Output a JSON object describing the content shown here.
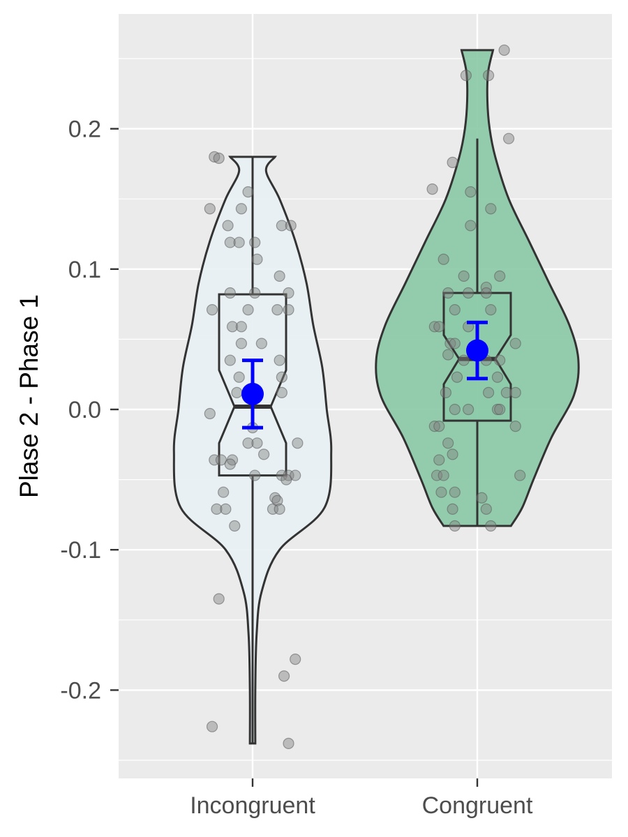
{
  "chart_data": {
    "type": "violin",
    "title": "",
    "xlabel": "",
    "ylabel": "Plase 2 - Phase 1",
    "categories": [
      "Incongruent",
      "Congruent"
    ],
    "ylim": [
      -0.26,
      0.285
    ],
    "y_ticks": [
      {
        "value": -0.2,
        "label": "-0.2"
      },
      {
        "value": -0.1,
        "label": "-0.1"
      },
      {
        "value": 0.0,
        "label": "0.0"
      },
      {
        "value": 0.1,
        "label": "0.1"
      },
      {
        "value": 0.2,
        "label": "0.2"
      }
    ],
    "grid": true,
    "legend": "none",
    "colors": {
      "panel_background": "#ebebeb",
      "grid": "#ffffff",
      "outline": "#333333",
      "points": "#808080",
      "mean": "#0000ff"
    },
    "series": [
      {
        "category": "Incongruent",
        "fill": "#e8f1f4",
        "violin_range": [
          -0.238,
          0.18
        ],
        "violin_density": [
          [
            -0.238,
            0.012
          ],
          [
            -0.2,
            0.012
          ],
          [
            -0.16,
            0.018
          ],
          [
            -0.13,
            0.04
          ],
          [
            -0.1,
            0.12
          ],
          [
            -0.07,
            0.32
          ],
          [
            -0.03,
            0.35
          ],
          [
            0.0,
            0.33
          ],
          [
            0.03,
            0.31
          ],
          [
            0.06,
            0.27
          ],
          [
            0.09,
            0.24
          ],
          [
            0.12,
            0.19
          ],
          [
            0.15,
            0.12
          ],
          [
            0.17,
            0.06
          ],
          [
            0.18,
            0.1
          ]
        ],
        "box": {
          "q1": -0.047,
          "median": 0.002,
          "q3": 0.082,
          "notch_low": -0.024,
          "notch_high": 0.028,
          "whisker_low": -0.238,
          "whisker_high": 0.18
        },
        "mean": 0.011,
        "error_bar": [
          -0.013,
          0.035
        ],
        "points": [
          {
            "dx": -0.17,
            "y": 0.18
          },
          {
            "dx": -0.15,
            "y": 0.179
          },
          {
            "dx": -0.19,
            "y": 0.143
          },
          {
            "dx": -0.02,
            "y": 0.155
          },
          {
            "dx": -0.05,
            "y": 0.143
          },
          {
            "dx": -0.11,
            "y": 0.131
          },
          {
            "dx": 0.13,
            "y": 0.131
          },
          {
            "dx": 0.17,
            "y": 0.131
          },
          {
            "dx": -0.1,
            "y": 0.119
          },
          {
            "dx": -0.06,
            "y": 0.119
          },
          {
            "dx": 0.01,
            "y": 0.119
          },
          {
            "dx": 0.02,
            "y": 0.107
          },
          {
            "dx": 0.12,
            "y": 0.095
          },
          {
            "dx": -0.1,
            "y": 0.083
          },
          {
            "dx": 0.01,
            "y": 0.083
          },
          {
            "dx": 0.16,
            "y": 0.083
          },
          {
            "dx": -0.18,
            "y": 0.071
          },
          {
            "dx": -0.02,
            "y": 0.071
          },
          {
            "dx": 0.11,
            "y": 0.071
          },
          {
            "dx": 0.16,
            "y": 0.071
          },
          {
            "dx": -0.09,
            "y": 0.059
          },
          {
            "dx": -0.05,
            "y": 0.059
          },
          {
            "dx": -0.05,
            "y": 0.047
          },
          {
            "dx": 0.04,
            "y": 0.047
          },
          {
            "dx": 0.12,
            "y": 0.035
          },
          {
            "dx": -0.1,
            "y": 0.035
          },
          {
            "dx": -0.06,
            "y": 0.023
          },
          {
            "dx": 0.13,
            "y": 0.023
          },
          {
            "dx": -0.07,
            "y": 0.012
          },
          {
            "dx": 0.13,
            "y": 0.012
          },
          {
            "dx": -0.19,
            "y": -0.003
          },
          {
            "dx": 0.0,
            "y": -0.013
          },
          {
            "dx": -0.02,
            "y": -0.024
          },
          {
            "dx": 0.02,
            "y": -0.024
          },
          {
            "dx": 0.2,
            "y": -0.024
          },
          {
            "dx": 0.05,
            "y": -0.032
          },
          {
            "dx": -0.17,
            "y": -0.036
          },
          {
            "dx": -0.14,
            "y": -0.036
          },
          {
            "dx": -0.09,
            "y": -0.036
          },
          {
            "dx": -0.1,
            "y": -0.039
          },
          {
            "dx": 0.13,
            "y": -0.047
          },
          {
            "dx": 0.16,
            "y": -0.047
          },
          {
            "dx": 0.19,
            "y": -0.047
          },
          {
            "dx": 0.15,
            "y": -0.05
          },
          {
            "dx": 0.01,
            "y": -0.047
          },
          {
            "dx": -0.13,
            "y": -0.059
          },
          {
            "dx": 0.1,
            "y": -0.063
          },
          {
            "dx": 0.11,
            "y": -0.065
          },
          {
            "dx": -0.16,
            "y": -0.071
          },
          {
            "dx": -0.12,
            "y": -0.071
          },
          {
            "dx": 0.09,
            "y": -0.071
          },
          {
            "dx": 0.12,
            "y": -0.071
          },
          {
            "dx": -0.08,
            "y": -0.083
          },
          {
            "dx": -0.15,
            "y": -0.135
          },
          {
            "dx": 0.19,
            "y": -0.178
          },
          {
            "dx": 0.14,
            "y": -0.19
          },
          {
            "dx": -0.18,
            "y": -0.226
          },
          {
            "dx": 0.16,
            "y": -0.238
          }
        ]
      },
      {
        "category": "Congruent",
        "fill": "#88c9a5",
        "violin_range": [
          -0.083,
          0.256
        ],
        "violin_density": [
          [
            -0.083,
            0.15
          ],
          [
            -0.07,
            0.2
          ],
          [
            -0.05,
            0.25
          ],
          [
            -0.02,
            0.33
          ],
          [
            0.01,
            0.43
          ],
          [
            0.035,
            0.45
          ],
          [
            0.06,
            0.41
          ],
          [
            0.09,
            0.32
          ],
          [
            0.12,
            0.23
          ],
          [
            0.15,
            0.14
          ],
          [
            0.18,
            0.08
          ],
          [
            0.2,
            0.055
          ],
          [
            0.22,
            0.045
          ],
          [
            0.24,
            0.048
          ],
          [
            0.256,
            0.07
          ]
        ],
        "box": {
          "q1": -0.008,
          "median": 0.036,
          "q3": 0.083,
          "notch_low": 0.018,
          "notch_high": 0.053,
          "whisker_low": -0.083,
          "whisker_high": 0.193
        },
        "mean": 0.042,
        "error_bar": [
          0.022,
          0.062
        ],
        "points": [
          {
            "dx": 0.12,
            "y": 0.256
          },
          {
            "dx": -0.05,
            "y": 0.238
          },
          {
            "dx": 0.05,
            "y": 0.238
          },
          {
            "dx": 0.14,
            "y": 0.193
          },
          {
            "dx": -0.11,
            "y": 0.176
          },
          {
            "dx": -0.2,
            "y": 0.157
          },
          {
            "dx": -0.03,
            "y": 0.155
          },
          {
            "dx": 0.06,
            "y": 0.143
          },
          {
            "dx": -0.03,
            "y": 0.131
          },
          {
            "dx": -0.15,
            "y": 0.107
          },
          {
            "dx": -0.06,
            "y": 0.095
          },
          {
            "dx": 0.04,
            "y": 0.087
          },
          {
            "dx": 0.1,
            "y": 0.095
          },
          {
            "dx": -0.13,
            "y": 0.083
          },
          {
            "dx": -0.04,
            "y": 0.083
          },
          {
            "dx": 0.04,
            "y": 0.083
          },
          {
            "dx": -0.1,
            "y": 0.071
          },
          {
            "dx": 0.06,
            "y": 0.071
          },
          {
            "dx": -0.19,
            "y": 0.059
          },
          {
            "dx": -0.17,
            "y": 0.059
          },
          {
            "dx": -0.04,
            "y": 0.059
          },
          {
            "dx": -0.12,
            "y": 0.047
          },
          {
            "dx": -0.1,
            "y": 0.047
          },
          {
            "dx": 0.17,
            "y": 0.047
          },
          {
            "dx": -0.13,
            "y": 0.039
          },
          {
            "dx": -0.06,
            "y": 0.035
          },
          {
            "dx": 0.04,
            "y": 0.035
          },
          {
            "dx": 0.1,
            "y": 0.035
          },
          {
            "dx": -0.09,
            "y": 0.023
          },
          {
            "dx": 0.09,
            "y": 0.023
          },
          {
            "dx": -0.14,
            "y": 0.012
          },
          {
            "dx": 0.05,
            "y": 0.012
          },
          {
            "dx": 0.13,
            "y": 0.012
          },
          {
            "dx": 0.17,
            "y": 0.012
          },
          {
            "dx": -0.1,
            "y": 0.0
          },
          {
            "dx": -0.04,
            "y": 0.0
          },
          {
            "dx": 0.09,
            "y": 0.0
          },
          {
            "dx": 0.1,
            "y": 0.0
          },
          {
            "dx": -0.19,
            "y": -0.012
          },
          {
            "dx": -0.17,
            "y": -0.012
          },
          {
            "dx": 0.17,
            "y": -0.012
          },
          {
            "dx": -0.13,
            "y": -0.024
          },
          {
            "dx": -0.11,
            "y": -0.032
          },
          {
            "dx": -0.17,
            "y": -0.036
          },
          {
            "dx": -0.18,
            "y": -0.047
          },
          {
            "dx": -0.15,
            "y": -0.047
          },
          {
            "dx": 0.19,
            "y": -0.047
          },
          {
            "dx": -0.16,
            "y": -0.059
          },
          {
            "dx": -0.1,
            "y": -0.059
          },
          {
            "dx": 0.02,
            "y": -0.063
          },
          {
            "dx": -0.11,
            "y": -0.071
          },
          {
            "dx": 0.04,
            "y": -0.071
          },
          {
            "dx": -0.1,
            "y": -0.083
          },
          {
            "dx": 0.06,
            "y": -0.083
          }
        ]
      }
    ]
  }
}
